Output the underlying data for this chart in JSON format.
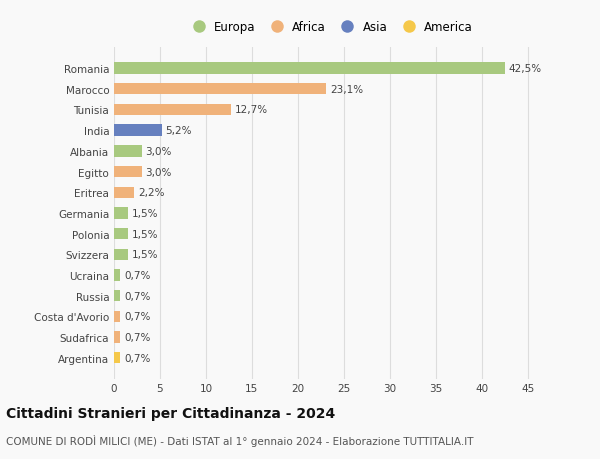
{
  "countries": [
    "Romania",
    "Marocco",
    "Tunisia",
    "India",
    "Albania",
    "Egitto",
    "Eritrea",
    "Germania",
    "Polonia",
    "Svizzera",
    "Ucraina",
    "Russia",
    "Costa d'Avorio",
    "Sudafrica",
    "Argentina"
  ],
  "values": [
    42.5,
    23.1,
    12.7,
    5.2,
    3.0,
    3.0,
    2.2,
    1.5,
    1.5,
    1.5,
    0.7,
    0.7,
    0.7,
    0.7,
    0.7
  ],
  "labels": [
    "42,5%",
    "23,1%",
    "12,7%",
    "5,2%",
    "3,0%",
    "3,0%",
    "2,2%",
    "1,5%",
    "1,5%",
    "1,5%",
    "0,7%",
    "0,7%",
    "0,7%",
    "0,7%",
    "0,7%"
  ],
  "continents": [
    "Europa",
    "Africa",
    "Africa",
    "Asia",
    "Europa",
    "Africa",
    "Africa",
    "Europa",
    "Europa",
    "Europa",
    "Europa",
    "Europa",
    "Africa",
    "Africa",
    "America"
  ],
  "continent_colors": {
    "Europa": "#a8c97f",
    "Africa": "#f0b27a",
    "Asia": "#6680bf",
    "America": "#f5c84a"
  },
  "legend_order": [
    "Europa",
    "Africa",
    "Asia",
    "America"
  ],
  "legend_colors": [
    "#a8c97f",
    "#f0b27a",
    "#6680bf",
    "#f5c84a"
  ],
  "title": "Cittadini Stranieri per Cittadinanza - 2024",
  "subtitle": "COMUNE DI RODÌ MILICI (ME) - Dati ISTAT al 1° gennaio 2024 - Elaborazione TUTTITALIA.IT",
  "xlim": [
    0,
    47
  ],
  "xticks": [
    0,
    5,
    10,
    15,
    20,
    25,
    30,
    35,
    40,
    45
  ],
  "background_color": "#f9f9f9",
  "grid_color": "#dddddd",
  "bar_height": 0.55,
  "label_fontsize": 7.5,
  "tick_fontsize": 7.5,
  "title_fontsize": 10,
  "subtitle_fontsize": 7.5,
  "legend_fontsize": 8.5
}
